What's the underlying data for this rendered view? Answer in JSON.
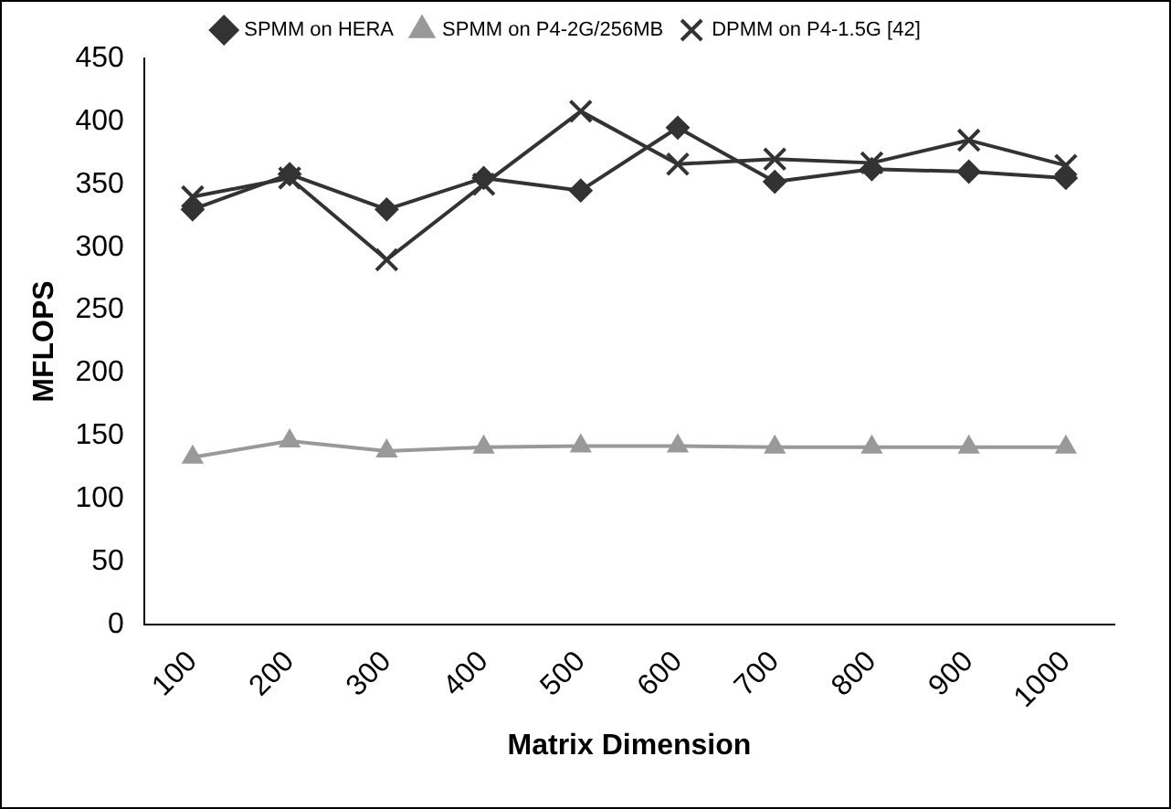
{
  "chart_data": {
    "type": "line",
    "xlabel": "Matrix Dimension",
    "ylabel": "MFLOPS",
    "categories": [
      "100",
      "200",
      "300",
      "400",
      "500",
      "600",
      "700",
      "800",
      "900",
      "1000"
    ],
    "ylim": [
      0,
      450
    ],
    "yticks": [
      0,
      50,
      100,
      150,
      200,
      250,
      300,
      350,
      400,
      450
    ],
    "grid": false,
    "legend": "top",
    "series": [
      {
        "name": "SPMM on HERA",
        "color": "#333333",
        "marker": "diamond",
        "values": [
          330,
          358,
          330,
          355,
          345,
          395,
          352,
          362,
          360,
          355
        ]
      },
      {
        "name": "SPMM on P4-2G/256MB",
        "color": "#999999",
        "marker": "triangle",
        "values": [
          133,
          146,
          138,
          141,
          142,
          142,
          141,
          141,
          141,
          141
        ]
      },
      {
        "name": "DPMM on P4-1.5G [42]",
        "color": "#333333",
        "marker": "cross",
        "values": [
          340,
          355,
          290,
          350,
          408,
          366,
          370,
          367,
          385,
          365
        ]
      }
    ]
  }
}
